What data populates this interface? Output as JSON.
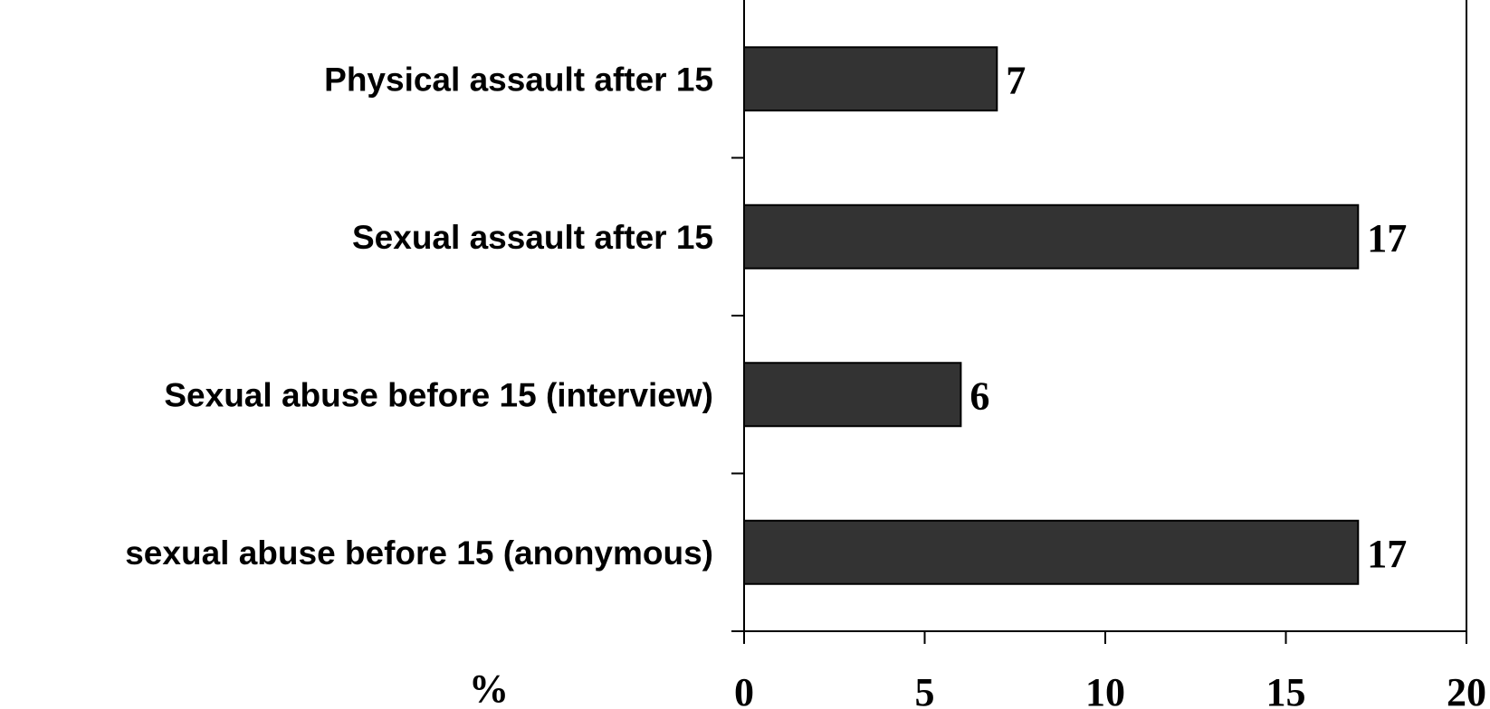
{
  "chart_data": {
    "type": "bar",
    "orientation": "horizontal",
    "categories": [
      "Physical assault after 15",
      "Sexual assault after 15",
      "Sexual abuse before 15 (interview)",
      "sexual abuse before 15 (anonymous)"
    ],
    "values": [
      7,
      17,
      6,
      17
    ],
    "value_labels": [
      "7",
      "17",
      "6",
      "17"
    ],
    "x_ticks": [
      "0",
      "5",
      "10",
      "15",
      "20"
    ],
    "xlim": [
      0,
      20
    ],
    "unit_label": "%",
    "title": "",
    "grid": false,
    "legend": "none",
    "colors": {
      "bar_fill": "#333333",
      "bar_stroke": "#000000",
      "text": "#000000",
      "background": "#ffffff"
    }
  }
}
